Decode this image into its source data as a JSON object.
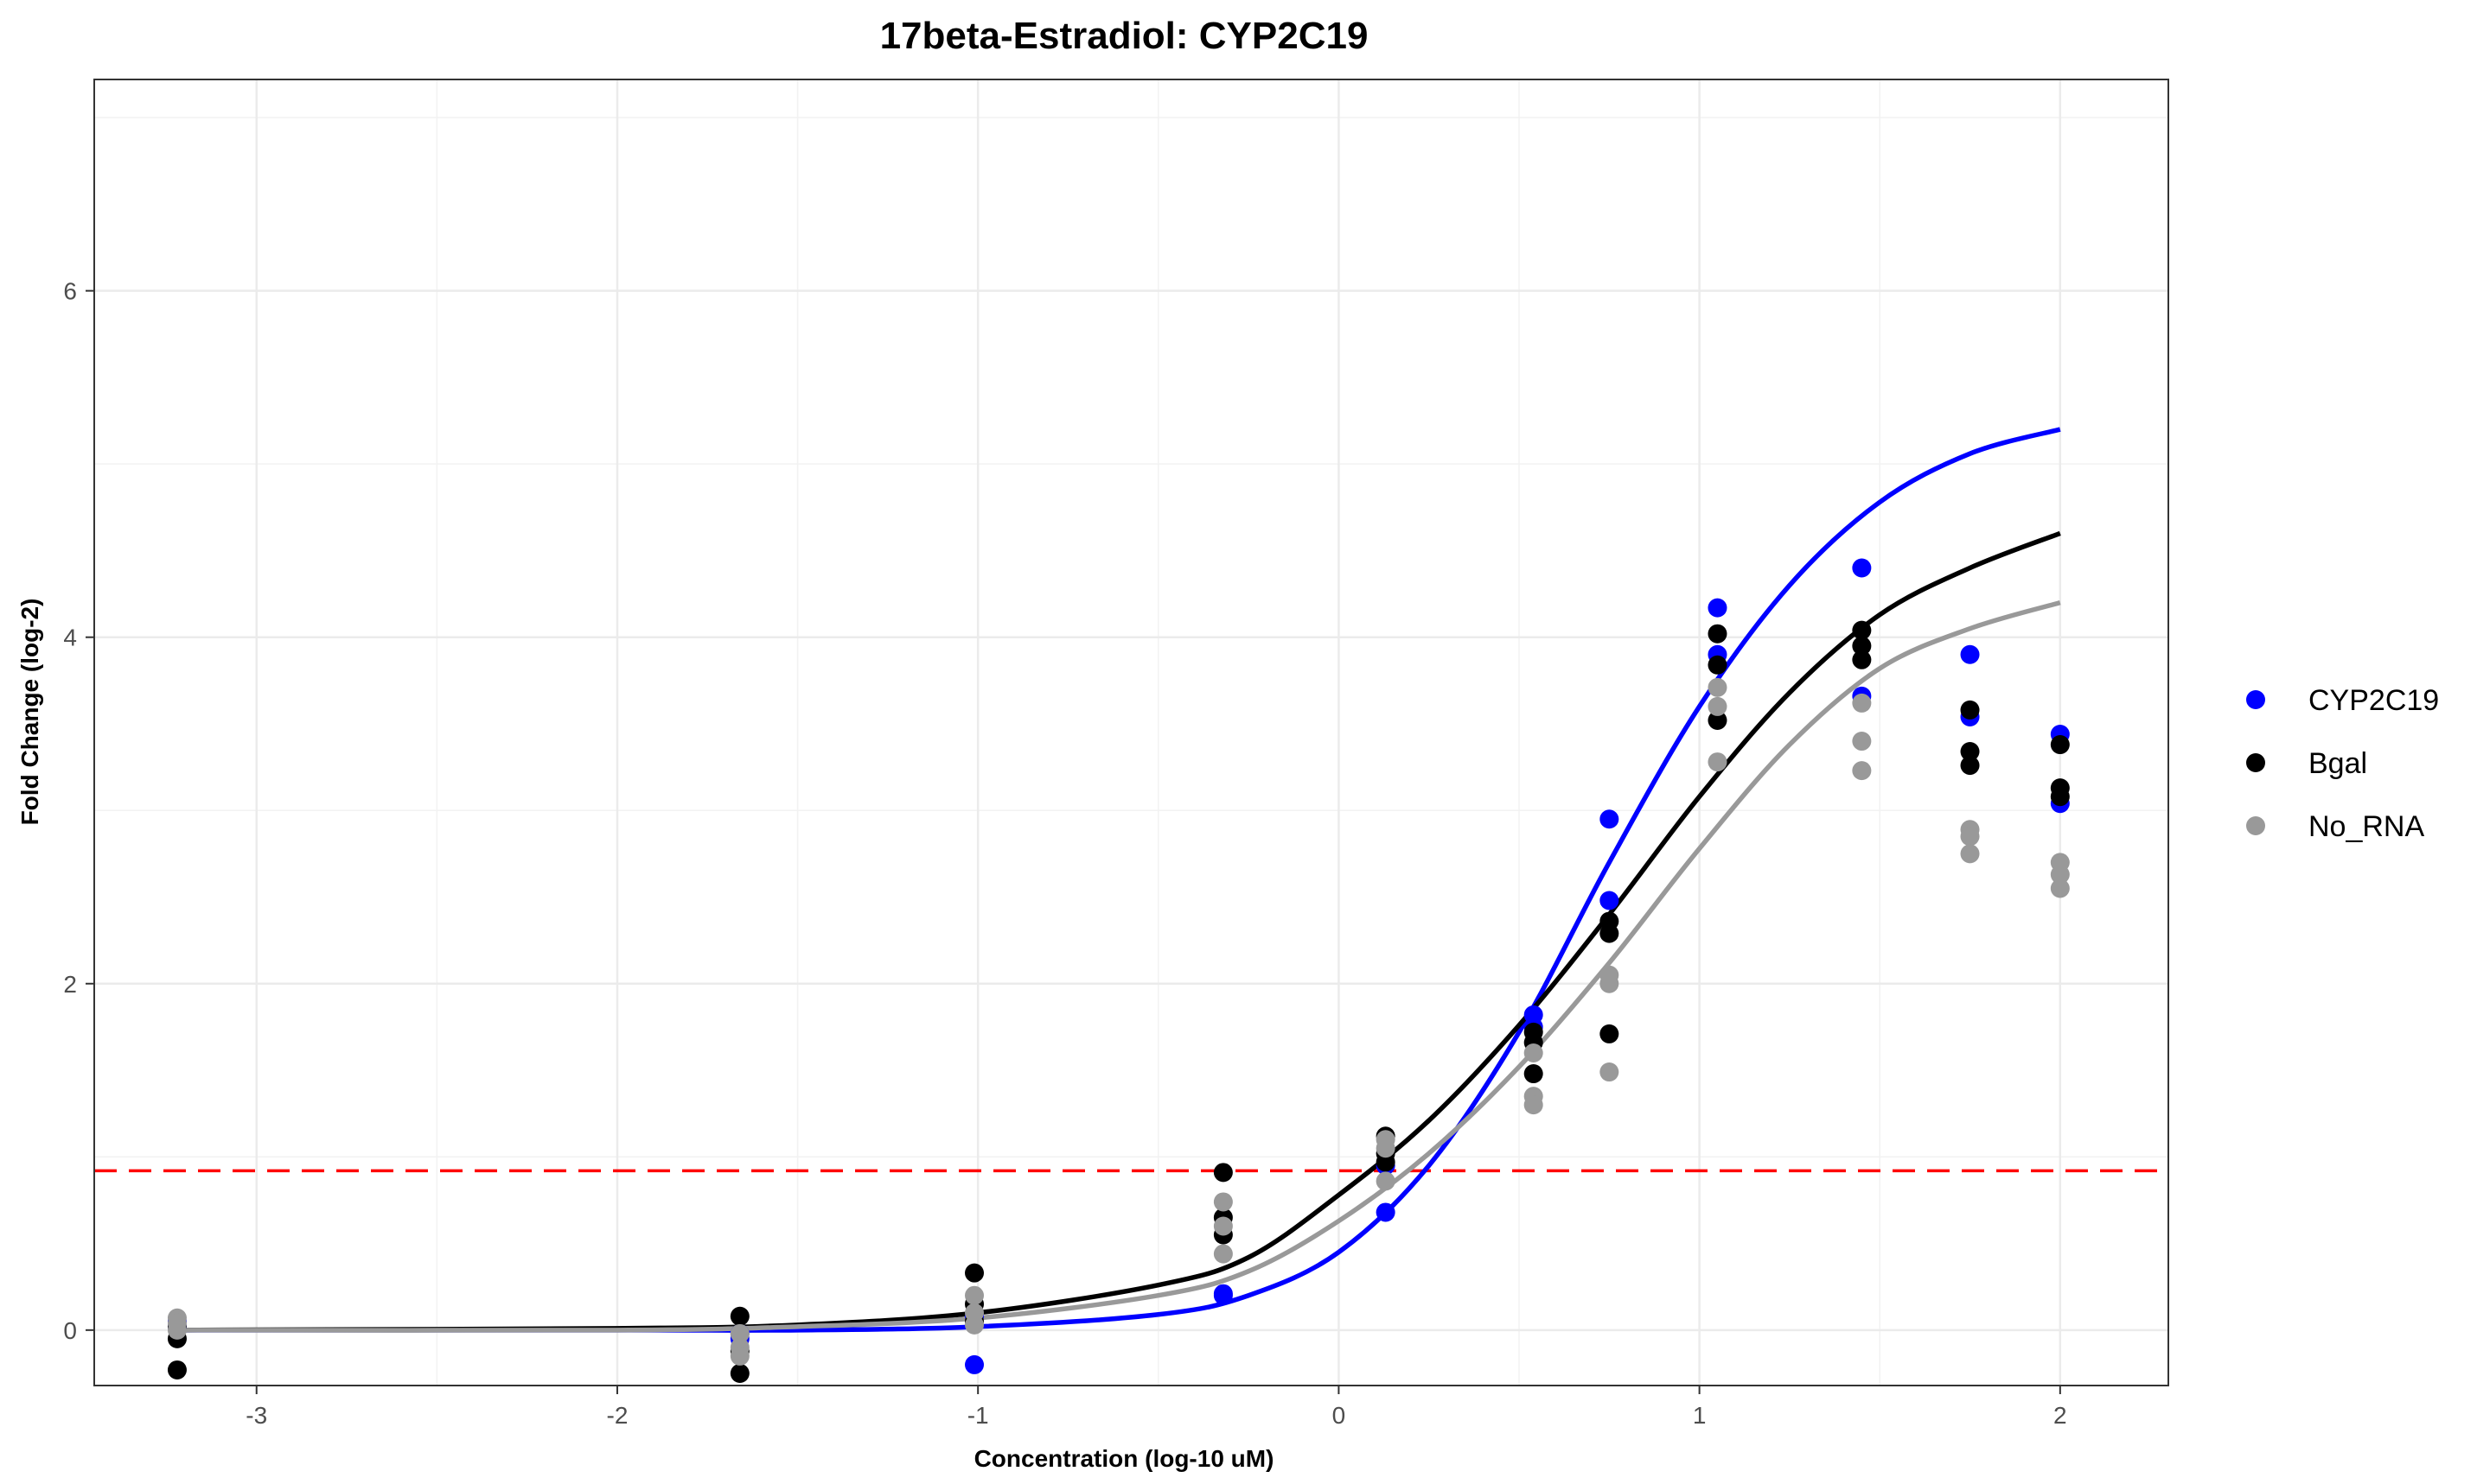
{
  "chart_data": {
    "type": "scatter",
    "title": "17beta-Estradiol: CYP2C19",
    "xlabel": "Concentration (log-10 uM)",
    "ylabel": "Fold Change (log-2)",
    "xlim": [
      -3.45,
      2.3
    ],
    "ylim": [
      -0.32,
      7.22
    ],
    "x_ticks": [
      -3,
      -2,
      -1,
      0,
      1,
      2
    ],
    "y_ticks": [
      0,
      2,
      4,
      6
    ],
    "grid": true,
    "legend_position": "right",
    "threshold_line": {
      "y": 0.92,
      "color": "#ff0000",
      "style": "dashed"
    },
    "series": [
      {
        "name": "CYP2C19",
        "color": "#0000ff",
        "points": [
          [
            -3.22,
            0.02
          ],
          [
            -3.22,
            0.05
          ],
          [
            -1.66,
            -0.02
          ],
          [
            -1.66,
            -0.05
          ],
          [
            -1.01,
            -0.2
          ],
          [
            -1.01,
            0.08
          ],
          [
            -0.32,
            0.21
          ],
          [
            -0.32,
            0.2
          ],
          [
            0.13,
            0.68
          ],
          [
            0.13,
            0.95
          ],
          [
            0.54,
            1.82
          ],
          [
            0.54,
            1.75
          ],
          [
            0.75,
            2.95
          ],
          [
            0.75,
            2.48
          ],
          [
            1.05,
            4.17
          ],
          [
            1.05,
            3.9
          ],
          [
            1.45,
            4.4
          ],
          [
            1.45,
            3.66
          ],
          [
            1.75,
            3.9
          ],
          [
            1.75,
            3.54
          ],
          [
            2.0,
            3.44
          ],
          [
            2.0,
            3.04
          ]
        ],
        "curve": [
          [
            -3.22,
            0.0
          ],
          [
            -2.0,
            0.0
          ],
          [
            -1.5,
            0.0
          ],
          [
            -1.0,
            0.02
          ],
          [
            -0.5,
            0.09
          ],
          [
            -0.25,
            0.2
          ],
          [
            0.0,
            0.45
          ],
          [
            0.25,
            0.95
          ],
          [
            0.5,
            1.72
          ],
          [
            0.75,
            2.7
          ],
          [
            1.0,
            3.6
          ],
          [
            1.25,
            4.3
          ],
          [
            1.5,
            4.78
          ],
          [
            1.75,
            5.06
          ],
          [
            2.0,
            5.2
          ]
        ]
      },
      {
        "name": "Bgal",
        "color": "#000000",
        "points": [
          [
            -3.22,
            -0.23
          ],
          [
            -3.22,
            -0.05
          ],
          [
            -3.22,
            0.02
          ],
          [
            -1.66,
            -0.25
          ],
          [
            -1.66,
            0.08
          ],
          [
            -1.66,
            -0.12
          ],
          [
            -1.01,
            0.33
          ],
          [
            -1.01,
            0.15
          ],
          [
            -1.01,
            0.05
          ],
          [
            -0.32,
            0.91
          ],
          [
            -0.32,
            0.65
          ],
          [
            -0.32,
            0.55
          ],
          [
            0.13,
            1.12
          ],
          [
            0.13,
            1.02
          ],
          [
            0.13,
            0.97
          ],
          [
            0.54,
            1.72
          ],
          [
            0.54,
            1.66
          ],
          [
            0.54,
            1.48
          ],
          [
            0.75,
            2.36
          ],
          [
            0.75,
            2.29
          ],
          [
            0.75,
            1.71
          ],
          [
            1.05,
            4.02
          ],
          [
            1.05,
            3.84
          ],
          [
            1.05,
            3.52
          ],
          [
            1.45,
            4.04
          ],
          [
            1.45,
            3.95
          ],
          [
            1.45,
            3.87
          ],
          [
            1.75,
            3.58
          ],
          [
            1.75,
            3.34
          ],
          [
            1.75,
            3.26
          ],
          [
            2.0,
            3.38
          ],
          [
            2.0,
            3.13
          ],
          [
            2.0,
            3.08
          ]
        ],
        "curve": [
          [
            -3.22,
            0.0
          ],
          [
            -2.0,
            0.01
          ],
          [
            -1.5,
            0.03
          ],
          [
            -1.0,
            0.1
          ],
          [
            -0.5,
            0.26
          ],
          [
            -0.25,
            0.42
          ],
          [
            0.0,
            0.78
          ],
          [
            0.25,
            1.21
          ],
          [
            0.5,
            1.76
          ],
          [
            0.75,
            2.4
          ],
          [
            1.0,
            3.08
          ],
          [
            1.25,
            3.68
          ],
          [
            1.5,
            4.13
          ],
          [
            1.75,
            4.4
          ],
          [
            2.0,
            4.6
          ]
        ]
      },
      {
        "name": "No_RNA",
        "color": "#999999",
        "points": [
          [
            -3.22,
            0.07
          ],
          [
            -3.22,
            0.04
          ],
          [
            -3.22,
            0.0
          ],
          [
            -1.66,
            -0.02
          ],
          [
            -1.66,
            -0.1
          ],
          [
            -1.66,
            -0.15
          ],
          [
            -1.01,
            0.2
          ],
          [
            -1.01,
            0.1
          ],
          [
            -1.01,
            0.03
          ],
          [
            -0.32,
            0.74
          ],
          [
            -0.32,
            0.6
          ],
          [
            -0.32,
            0.44
          ],
          [
            0.13,
            1.1
          ],
          [
            0.13,
            1.05
          ],
          [
            0.13,
            0.86
          ],
          [
            0.54,
            1.6
          ],
          [
            0.54,
            1.35
          ],
          [
            0.54,
            1.3
          ],
          [
            0.75,
            2.05
          ],
          [
            0.75,
            2.0
          ],
          [
            0.75,
            1.49
          ],
          [
            1.05,
            3.71
          ],
          [
            1.05,
            3.6
          ],
          [
            1.05,
            3.28
          ],
          [
            1.45,
            3.62
          ],
          [
            1.45,
            3.4
          ],
          [
            1.45,
            3.23
          ],
          [
            1.75,
            2.89
          ],
          [
            1.75,
            2.85
          ],
          [
            1.75,
            2.75
          ],
          [
            2.0,
            2.7
          ],
          [
            2.0,
            2.63
          ],
          [
            2.0,
            2.55
          ]
        ],
        "curve": [
          [
            -3.22,
            0.0
          ],
          [
            -2.0,
            0.0
          ],
          [
            -1.5,
            0.02
          ],
          [
            -1.0,
            0.07
          ],
          [
            -0.5,
            0.2
          ],
          [
            -0.25,
            0.34
          ],
          [
            0.0,
            0.63
          ],
          [
            0.25,
            1.02
          ],
          [
            0.5,
            1.52
          ],
          [
            0.75,
            2.12
          ],
          [
            1.0,
            2.78
          ],
          [
            1.25,
            3.38
          ],
          [
            1.5,
            3.82
          ],
          [
            1.75,
            4.05
          ],
          [
            2.0,
            4.2
          ]
        ]
      }
    ]
  }
}
